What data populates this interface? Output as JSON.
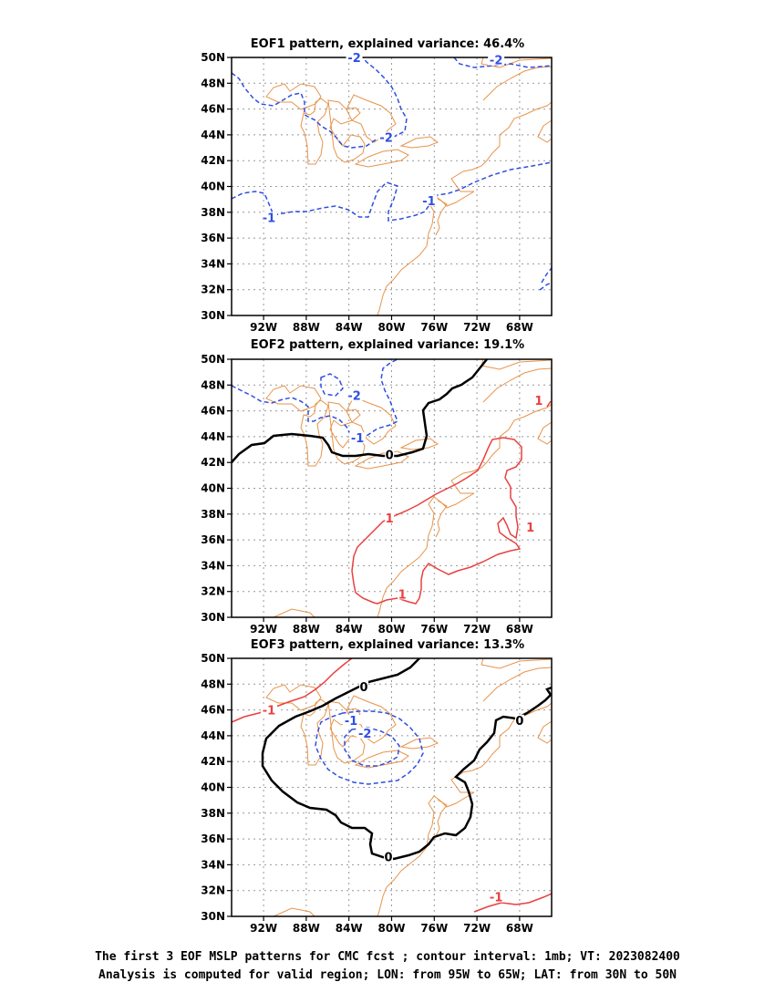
{
  "panels": [
    {
      "title": "EOF1 pattern, explained variance: 46.4%",
      "labels": [
        {
          "text": "-2",
          "color": "#2f4fe0",
          "lon": -83.5,
          "lat": 49.8
        },
        {
          "text": "-2",
          "color": "#2f4fe0",
          "lon": -70.2,
          "lat": 49.6
        },
        {
          "text": "-2",
          "color": "#2f4fe0",
          "lon": -80.5,
          "lat": 43.6
        },
        {
          "text": "-1",
          "color": "#2f4fe0",
          "lon": -91.5,
          "lat": 37.4
        },
        {
          "text": "-1",
          "color": "#2f4fe0",
          "lon": -76.5,
          "lat": 38.7
        }
      ]
    },
    {
      "title": "EOF2 pattern, explained variance: 19.1%",
      "labels": [
        {
          "text": "-2",
          "color": "#2f4fe0",
          "lon": -83.5,
          "lat": 47.0
        },
        {
          "text": "-1",
          "color": "#2f4fe0",
          "lon": -83.2,
          "lat": 43.7
        },
        {
          "text": "0",
          "color": "#000000",
          "lon": -80.2,
          "lat": 42.4
        },
        {
          "text": "1",
          "color": "#e94040",
          "lon": -66.2,
          "lat": 46.6
        },
        {
          "text": "1",
          "color": "#e94040",
          "lon": -80.2,
          "lat": 37.5
        },
        {
          "text": "1",
          "color": "#e94040",
          "lon": -79.0,
          "lat": 31.6
        },
        {
          "text": "1",
          "color": "#e94040",
          "lon": -67.0,
          "lat": 36.8
        }
      ]
    },
    {
      "title": "EOF3 pattern, explained variance: 13.3%",
      "labels": [
        {
          "text": "0",
          "color": "#000000",
          "lon": -82.6,
          "lat": 47.6
        },
        {
          "text": "0",
          "color": "#000000",
          "lon": -68.0,
          "lat": 45.0
        },
        {
          "text": "0",
          "color": "#000000",
          "lon": -80.3,
          "lat": 34.4
        },
        {
          "text": "-1",
          "color": "#e94040",
          "lon": -91.5,
          "lat": 45.8
        },
        {
          "text": "-1",
          "color": "#2f4fe0",
          "lon": -83.8,
          "lat": 45.0
        },
        {
          "text": "-2",
          "color": "#2f4fe0",
          "lon": -82.5,
          "lat": 44.0
        },
        {
          "text": "-1",
          "color": "#e94040",
          "lon": -70.2,
          "lat": 31.3
        }
      ]
    }
  ],
  "x_ticks": [
    "92W",
    "88W",
    "84W",
    "80W",
    "76W",
    "72W",
    "68W"
  ],
  "x_tick_values": [
    -92,
    -88,
    -84,
    -80,
    -76,
    -72,
    -68
  ],
  "y_ticks": [
    "30N",
    "32N",
    "34N",
    "36N",
    "38N",
    "40N",
    "42N",
    "44N",
    "46N",
    "48N",
    "50N"
  ],
  "y_tick_values": [
    30,
    32,
    34,
    36,
    38,
    40,
    42,
    44,
    46,
    48,
    50
  ],
  "lon_range": [
    -95,
    -65
  ],
  "lat_range": [
    30,
    50
  ],
  "colors": {
    "negative": "#2f4fe0",
    "positive": "#e94040",
    "zero": "#000000",
    "coast": "#e8934a",
    "grid": "#999999"
  },
  "footer": {
    "line1": "The first 3 EOF MSLP patterns for CMC fcst ; contour interval: 1mb; VT: 2023082400",
    "line2": "Analysis is computed for valid region; LON: from 95W to 65W; LAT: from 30N to 50N"
  }
}
